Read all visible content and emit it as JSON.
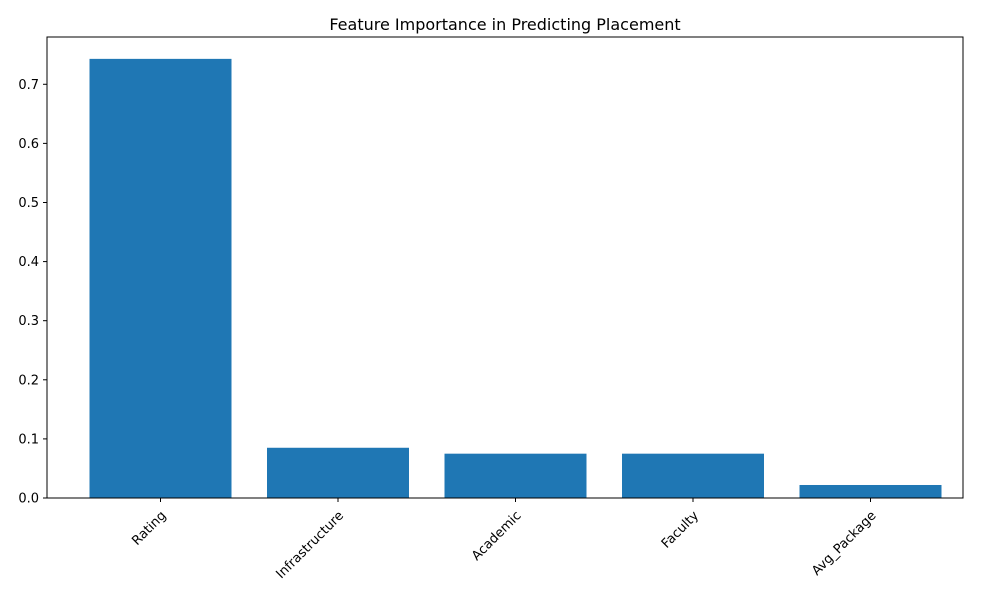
{
  "chart_data": {
    "type": "bar",
    "title": "Feature Importance in Predicting Placement",
    "xlabel": "",
    "ylabel": "",
    "categories": [
      "Rating",
      "Infrastructure",
      "Academic",
      "Faculty",
      "Avg_Package"
    ],
    "values": [
      0.743,
      0.085,
      0.075,
      0.075,
      0.022
    ],
    "ylim": [
      0,
      0.78
    ],
    "yticks": [
      "0.0",
      "0.1",
      "0.2",
      "0.3",
      "0.4",
      "0.5",
      "0.6",
      "0.7"
    ],
    "grid": false,
    "legend": "none",
    "bar_color": "#1f77b4"
  }
}
